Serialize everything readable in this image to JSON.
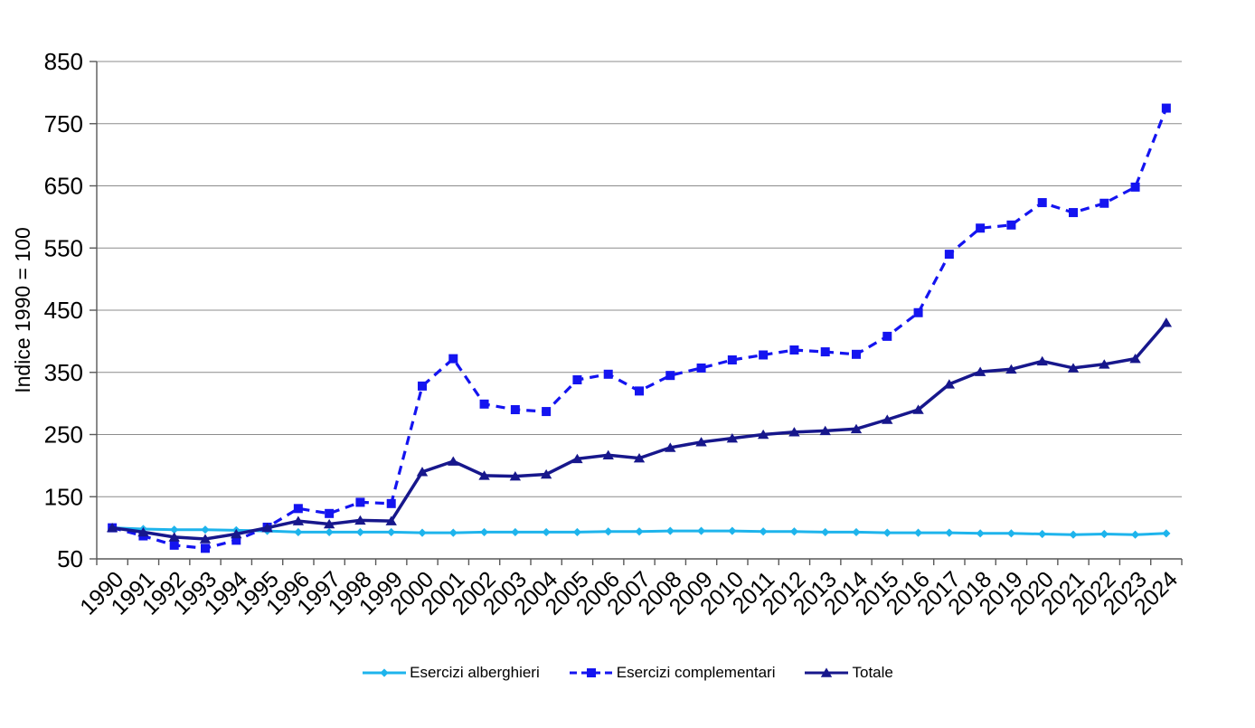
{
  "chart_data": {
    "type": "line",
    "title": "",
    "xlabel": "",
    "ylabel": "Indice 1990 = 100",
    "ylim": [
      50,
      850
    ],
    "yticks": [
      850,
      750,
      650,
      550,
      450,
      350,
      250,
      150,
      50
    ],
    "grid": "horizontal",
    "legend_position": "bottom",
    "background": "#ffffff",
    "gridline_color": "#8c8c8c",
    "axis_color": "#595959",
    "categories": [
      "1990",
      "1991",
      "1992",
      "1993",
      "1994",
      "1995",
      "1996",
      "1997",
      "1998",
      "1999",
      "2000",
      "2001",
      "2002",
      "2003",
      "2004",
      "2005",
      "2006",
      "2007",
      "2008",
      "2009",
      "2010",
      "2011",
      "2012",
      "2013",
      "2014",
      "2015",
      "2016",
      "2017",
      "2018",
      "2019",
      "2020",
      "2021",
      "2022",
      "2023",
      "2024"
    ],
    "series": [
      {
        "name": "Esercizi alberghieri",
        "color": "#1eb4ec",
        "marker": "diamond",
        "line_style": "solid",
        "line_width": 3,
        "values": [
          100,
          98,
          97,
          97,
          96,
          95,
          93,
          93,
          93,
          93,
          92,
          92,
          93,
          93,
          93,
          93,
          94,
          94,
          95,
          95,
          95,
          94,
          94,
          93,
          93,
          92,
          92,
          92,
          91,
          91,
          90,
          89,
          90,
          89,
          91
        ]
      },
      {
        "name": "Esercizi complementari",
        "color": "#1414f0",
        "marker": "square",
        "line_style": "dashed",
        "line_width": 3.2,
        "values": [
          100,
          87,
          72,
          67,
          80,
          101,
          131,
          123,
          141,
          139,
          328,
          372,
          299,
          290,
          287,
          338,
          347,
          320,
          345,
          357,
          370,
          378,
          386,
          383,
          379,
          408,
          446,
          540,
          582,
          587,
          623,
          607,
          622,
          648,
          775
        ]
      },
      {
        "name": "Totale",
        "color": "#17178c",
        "marker": "triangle",
        "line_style": "solid",
        "line_width": 3.5,
        "values": [
          100,
          93,
          85,
          82,
          90,
          100,
          111,
          106,
          112,
          111,
          190,
          207,
          184,
          183,
          186,
          211,
          217,
          212,
          229,
          238,
          244,
          250,
          254,
          256,
          259,
          274,
          290,
          331,
          351,
          355,
          368,
          357,
          363,
          372,
          430
        ]
      }
    ]
  }
}
